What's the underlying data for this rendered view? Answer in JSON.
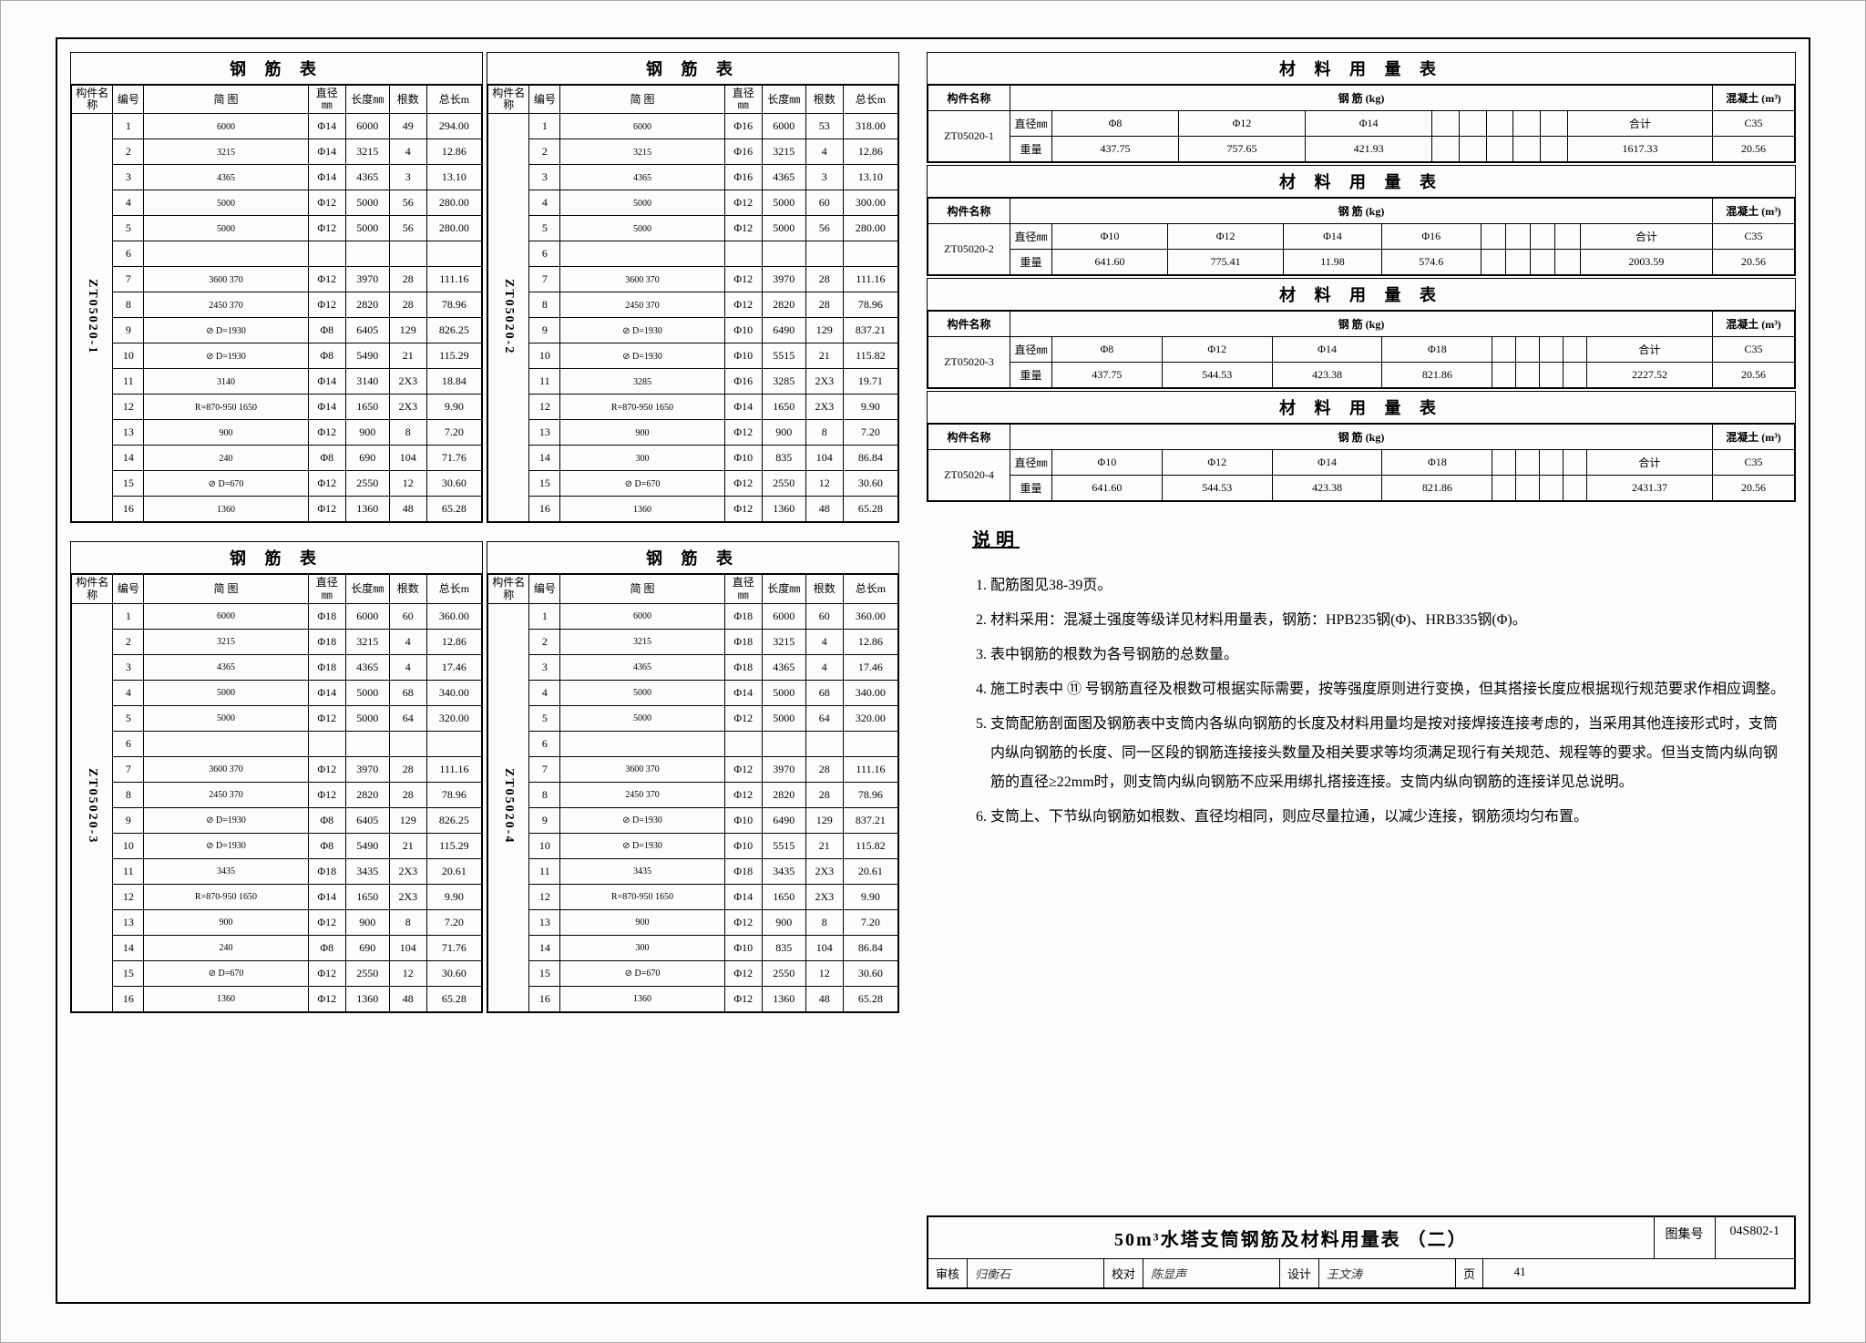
{
  "rebar_title": "钢  筋  表",
  "rebar_headers": {
    "member": "构件名称",
    "num": "编号",
    "diagram": "简    图",
    "dia": "直径㎜",
    "len": "长度㎜",
    "qty": "根数",
    "total": "总长m"
  },
  "rebar_sets": [
    {
      "member": "ZT05020-1",
      "rows": [
        {
          "n": "1",
          "dg": "6000",
          "dia": "Φ14",
          "len": "6000",
          "qty": "49",
          "tot": "294.00"
        },
        {
          "n": "2",
          "dg": "3215",
          "dia": "Φ14",
          "len": "3215",
          "qty": "4",
          "tot": "12.86"
        },
        {
          "n": "3",
          "dg": "4365",
          "dia": "Φ14",
          "len": "4365",
          "qty": "3",
          "tot": "13.10"
        },
        {
          "n": "4",
          "dg": "5000",
          "dia": "Φ12",
          "len": "5000",
          "qty": "56",
          "tot": "280.00"
        },
        {
          "n": "5",
          "dg": "5000",
          "dia": "Φ12",
          "len": "5000",
          "qty": "56",
          "tot": "280.00"
        },
        {
          "n": "6",
          "dg": "",
          "dia": "",
          "len": "",
          "qty": "",
          "tot": ""
        },
        {
          "n": "7",
          "dg": "3600  370",
          "dia": "Φ12",
          "len": "3970",
          "qty": "28",
          "tot": "111.16"
        },
        {
          "n": "8",
          "dg": "2450  370",
          "dia": "Φ12",
          "len": "2820",
          "qty": "28",
          "tot": "78.96"
        },
        {
          "n": "9",
          "dg": "⊘ D=1930",
          "dia": "Φ8",
          "len": "6405",
          "qty": "129",
          "tot": "826.25"
        },
        {
          "n": "10",
          "dg": "⊘ D=1930",
          "dia": "Φ8",
          "len": "5490",
          "qty": "21",
          "tot": "115.29"
        },
        {
          "n": "11",
          "dg": "3140",
          "dia": "Φ14",
          "len": "3140",
          "qty": "2X3",
          "tot": "18.84"
        },
        {
          "n": "12",
          "dg": "R=870-950 1650",
          "dia": "Φ14",
          "len": "1650",
          "qty": "2X3",
          "tot": "9.90"
        },
        {
          "n": "13",
          "dg": "900",
          "dia": "Φ12",
          "len": "900",
          "qty": "8",
          "tot": "7.20"
        },
        {
          "n": "14",
          "dg": "240",
          "dia": "Φ8",
          "len": "690",
          "qty": "104",
          "tot": "71.76"
        },
        {
          "n": "15",
          "dg": "⊘ D=670",
          "dia": "Φ12",
          "len": "2550",
          "qty": "12",
          "tot": "30.60"
        },
        {
          "n": "16",
          "dg": "1360",
          "dia": "Φ12",
          "len": "1360",
          "qty": "48",
          "tot": "65.28"
        }
      ]
    },
    {
      "member": "ZT05020-2",
      "rows": [
        {
          "n": "1",
          "dg": "6000",
          "dia": "Φ16",
          "len": "6000",
          "qty": "53",
          "tot": "318.00"
        },
        {
          "n": "2",
          "dg": "3215",
          "dia": "Φ16",
          "len": "3215",
          "qty": "4",
          "tot": "12.86"
        },
        {
          "n": "3",
          "dg": "4365",
          "dia": "Φ16",
          "len": "4365",
          "qty": "3",
          "tot": "13.10"
        },
        {
          "n": "4",
          "dg": "5000",
          "dia": "Φ12",
          "len": "5000",
          "qty": "60",
          "tot": "300.00"
        },
        {
          "n": "5",
          "dg": "5000",
          "dia": "Φ12",
          "len": "5000",
          "qty": "56",
          "tot": "280.00"
        },
        {
          "n": "6",
          "dg": "",
          "dia": "",
          "len": "",
          "qty": "",
          "tot": ""
        },
        {
          "n": "7",
          "dg": "3600  370",
          "dia": "Φ12",
          "len": "3970",
          "qty": "28",
          "tot": "111.16"
        },
        {
          "n": "8",
          "dg": "2450  370",
          "dia": "Φ12",
          "len": "2820",
          "qty": "28",
          "tot": "78.96"
        },
        {
          "n": "9",
          "dg": "⊘ D=1930",
          "dia": "Φ10",
          "len": "6490",
          "qty": "129",
          "tot": "837.21"
        },
        {
          "n": "10",
          "dg": "⊘ D=1930",
          "dia": "Φ10",
          "len": "5515",
          "qty": "21",
          "tot": "115.82"
        },
        {
          "n": "11",
          "dg": "3285",
          "dia": "Φ16",
          "len": "3285",
          "qty": "2X3",
          "tot": "19.71"
        },
        {
          "n": "12",
          "dg": "R=870-950 1650",
          "dia": "Φ14",
          "len": "1650",
          "qty": "2X3",
          "tot": "9.90"
        },
        {
          "n": "13",
          "dg": "900",
          "dia": "Φ12",
          "len": "900",
          "qty": "8",
          "tot": "7.20"
        },
        {
          "n": "14",
          "dg": "300",
          "dia": "Φ10",
          "len": "835",
          "qty": "104",
          "tot": "86.84"
        },
        {
          "n": "15",
          "dg": "⊘ D=670",
          "dia": "Φ12",
          "len": "2550",
          "qty": "12",
          "tot": "30.60"
        },
        {
          "n": "16",
          "dg": "1360",
          "dia": "Φ12",
          "len": "1360",
          "qty": "48",
          "tot": "65.28"
        }
      ]
    },
    {
      "member": "ZT05020-3",
      "rows": [
        {
          "n": "1",
          "dg": "6000",
          "dia": "Φ18",
          "len": "6000",
          "qty": "60",
          "tot": "360.00"
        },
        {
          "n": "2",
          "dg": "3215",
          "dia": "Φ18",
          "len": "3215",
          "qty": "4",
          "tot": "12.86"
        },
        {
          "n": "3",
          "dg": "4365",
          "dia": "Φ18",
          "len": "4365",
          "qty": "4",
          "tot": "17.46"
        },
        {
          "n": "4",
          "dg": "5000",
          "dia": "Φ14",
          "len": "5000",
          "qty": "68",
          "tot": "340.00"
        },
        {
          "n": "5",
          "dg": "5000",
          "dia": "Φ12",
          "len": "5000",
          "qty": "64",
          "tot": "320.00"
        },
        {
          "n": "6",
          "dg": "",
          "dia": "",
          "len": "",
          "qty": "",
          "tot": ""
        },
        {
          "n": "7",
          "dg": "3600  370",
          "dia": "Φ12",
          "len": "3970",
          "qty": "28",
          "tot": "111.16"
        },
        {
          "n": "8",
          "dg": "2450  370",
          "dia": "Φ12",
          "len": "2820",
          "qty": "28",
          "tot": "78.96"
        },
        {
          "n": "9",
          "dg": "⊘ D=1930",
          "dia": "Φ8",
          "len": "6405",
          "qty": "129",
          "tot": "826.25"
        },
        {
          "n": "10",
          "dg": "⊘ D=1930",
          "dia": "Φ8",
          "len": "5490",
          "qty": "21",
          "tot": "115.29"
        },
        {
          "n": "11",
          "dg": "3435",
          "dia": "Φ18",
          "len": "3435",
          "qty": "2X3",
          "tot": "20.61"
        },
        {
          "n": "12",
          "dg": "R=870-950 1650",
          "dia": "Φ14",
          "len": "1650",
          "qty": "2X3",
          "tot": "9.90"
        },
        {
          "n": "13",
          "dg": "900",
          "dia": "Φ12",
          "len": "900",
          "qty": "8",
          "tot": "7.20"
        },
        {
          "n": "14",
          "dg": "240",
          "dia": "Φ8",
          "len": "690",
          "qty": "104",
          "tot": "71.76"
        },
        {
          "n": "15",
          "dg": "⊘ D=670",
          "dia": "Φ12",
          "len": "2550",
          "qty": "12",
          "tot": "30.60"
        },
        {
          "n": "16",
          "dg": "1360",
          "dia": "Φ12",
          "len": "1360",
          "qty": "48",
          "tot": "65.28"
        }
      ]
    },
    {
      "member": "ZT05020-4",
      "rows": [
        {
          "n": "1",
          "dg": "6000",
          "dia": "Φ18",
          "len": "6000",
          "qty": "60",
          "tot": "360.00"
        },
        {
          "n": "2",
          "dg": "3215",
          "dia": "Φ18",
          "len": "3215",
          "qty": "4",
          "tot": "12.86"
        },
        {
          "n": "3",
          "dg": "4365",
          "dia": "Φ18",
          "len": "4365",
          "qty": "4",
          "tot": "17.46"
        },
        {
          "n": "4",
          "dg": "5000",
          "dia": "Φ14",
          "len": "5000",
          "qty": "68",
          "tot": "340.00"
        },
        {
          "n": "5",
          "dg": "5000",
          "dia": "Φ12",
          "len": "5000",
          "qty": "64",
          "tot": "320.00"
        },
        {
          "n": "6",
          "dg": "",
          "dia": "",
          "len": "",
          "qty": "",
          "tot": ""
        },
        {
          "n": "7",
          "dg": "3600  370",
          "dia": "Φ12",
          "len": "3970",
          "qty": "28",
          "tot": "111.16"
        },
        {
          "n": "8",
          "dg": "2450  370",
          "dia": "Φ12",
          "len": "2820",
          "qty": "28",
          "tot": "78.96"
        },
        {
          "n": "9",
          "dg": "⊘ D=1930",
          "dia": "Φ10",
          "len": "6490",
          "qty": "129",
          "tot": "837.21"
        },
        {
          "n": "10",
          "dg": "⊘ D=1930",
          "dia": "Φ10",
          "len": "5515",
          "qty": "21",
          "tot": "115.82"
        },
        {
          "n": "11",
          "dg": "3435",
          "dia": "Φ18",
          "len": "3435",
          "qty": "2X3",
          "tot": "20.61"
        },
        {
          "n": "12",
          "dg": "R=870-950 1650",
          "dia": "Φ14",
          "len": "1650",
          "qty": "2X3",
          "tot": "9.90"
        },
        {
          "n": "13",
          "dg": "900",
          "dia": "Φ12",
          "len": "900",
          "qty": "8",
          "tot": "7.20"
        },
        {
          "n": "14",
          "dg": "300",
          "dia": "Φ10",
          "len": "835",
          "qty": "104",
          "tot": "86.84"
        },
        {
          "n": "15",
          "dg": "⊘ D=670",
          "dia": "Φ12",
          "len": "2550",
          "qty": "12",
          "tot": "30.60"
        },
        {
          "n": "16",
          "dg": "1360",
          "dia": "Φ12",
          "len": "1360",
          "qty": "48",
          "tot": "65.28"
        }
      ]
    }
  ],
  "mat_title": "材 料 用 量 表",
  "mat_headers": {
    "member": "构件名称",
    "rebar_kg": "钢   筋   (kg)",
    "concrete": "混凝土 (m³)",
    "dia_label": "直径㎜",
    "wt_label": "重量",
    "sum": "合计"
  },
  "mat_sets": [
    {
      "member": "ZT05020-1",
      "dias": [
        "Φ8",
        "Φ12",
        "Φ14",
        "",
        "",
        "",
        "",
        ""
      ],
      "wts": [
        "437.75",
        "757.65",
        "421.93",
        "",
        "",
        "",
        "",
        ""
      ],
      "sum": "1617.33",
      "concrete_grade": "C35",
      "concrete_vol": "20.56"
    },
    {
      "member": "ZT05020-2",
      "dias": [
        "Φ10",
        "Φ12",
        "Φ14",
        "Φ16",
        "",
        "",
        "",
        ""
      ],
      "wts": [
        "641.60",
        "775.41",
        "11.98",
        "574.6",
        "",
        "",
        "",
        ""
      ],
      "sum": "2003.59",
      "concrete_grade": "C35",
      "concrete_vol": "20.56"
    },
    {
      "member": "ZT05020-3",
      "dias": [
        "Φ8",
        "Φ12",
        "Φ14",
        "Φ18",
        "",
        "",
        "",
        ""
      ],
      "wts": [
        "437.75",
        "544.53",
        "423.38",
        "821.86",
        "",
        "",
        "",
        ""
      ],
      "sum": "2227.52",
      "concrete_grade": "C35",
      "concrete_vol": "20.56"
    },
    {
      "member": "ZT05020-4",
      "dias": [
        "Φ10",
        "Φ12",
        "Φ14",
        "Φ18",
        "",
        "",
        "",
        ""
      ],
      "wts": [
        "641.60",
        "544.53",
        "423.38",
        "821.86",
        "",
        "",
        "",
        ""
      ],
      "sum": "2431.37",
      "concrete_grade": "C35",
      "concrete_vol": "20.56"
    }
  ],
  "notes_title": "说明",
  "notes": [
    "配筋图见38-39页。",
    "材料采用：混凝土强度等级详见材料用量表，钢筋：HPB235钢(Φ)、HRB335钢(Φ)。",
    "表中钢筋的根数为各号钢筋的总数量。",
    "施工时表中 ⑪ 号钢筋直径及根数可根据实际需要，按等强度原则进行变换，但其搭接长度应根据现行规范要求作相应调整。",
    "支筒配筋剖面图及钢筋表中支筒内各纵向钢筋的长度及材料用量均是按对接焊接连接考虑的，当采用其他连接形式时，支筒内纵向钢筋的长度、同一区段的钢筋连接接头数量及相关要求等均须满足现行有关规范、规程等的要求。但当支筒内纵向钢筋的直径≥22mm时，则支筒内纵向钢筋不应采用绑扎搭接连接。支筒内纵向钢筋的连接详见总说明。",
    "支筒上、下节纵向钢筋如根数、直径均相同，则应尽量拉通，以减少连接，钢筋须均匀布置。"
  ],
  "titleblock": {
    "title": "50m³水塔支筒钢筋及材料用量表  （二）",
    "code_label": "图集号",
    "code": "04S802-1",
    "審核_label": "审核",
    "審核": "归衡石",
    "校对_label": "校对",
    "校对": "陈显声",
    "设计_label": "设计",
    "设计": "王文涛",
    "页_label": "页",
    "页": "41"
  }
}
